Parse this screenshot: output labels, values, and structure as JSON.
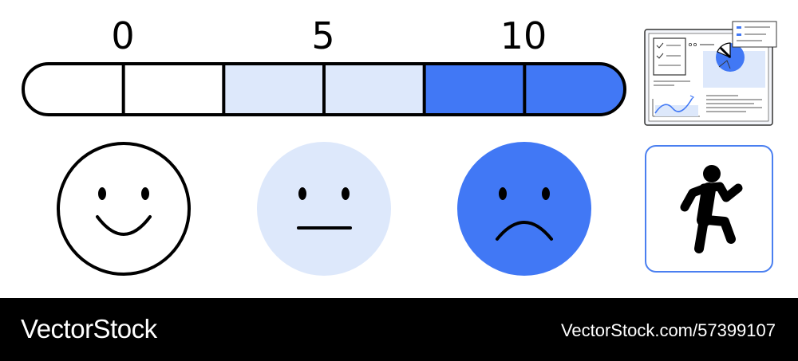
{
  "scale": {
    "labels": [
      "0",
      "5",
      "10"
    ],
    "segments": [
      {
        "fill": "#ffffff"
      },
      {
        "fill": "#ffffff"
      },
      {
        "fill": "#dde8fb"
      },
      {
        "fill": "#dde8fb"
      },
      {
        "fill": "#4178f5"
      },
      {
        "fill": "#4178f5"
      }
    ]
  },
  "faces": [
    {
      "mood": "happy",
      "fill": "#ffffff",
      "outline": true
    },
    {
      "mood": "neutral",
      "fill": "#dde8fb",
      "outline": false
    },
    {
      "mood": "sad",
      "fill": "#4178f5",
      "outline": false
    }
  ],
  "icons": {
    "report": "report-dashboard-icon",
    "runner": "running-person-icon"
  },
  "colors": {
    "accent": "#4178f5",
    "light": "#dde8fb",
    "card_border": "#4a7ff0"
  },
  "footer": {
    "brand": "VectorStock",
    "id": "VectorStock.com/57399107"
  }
}
